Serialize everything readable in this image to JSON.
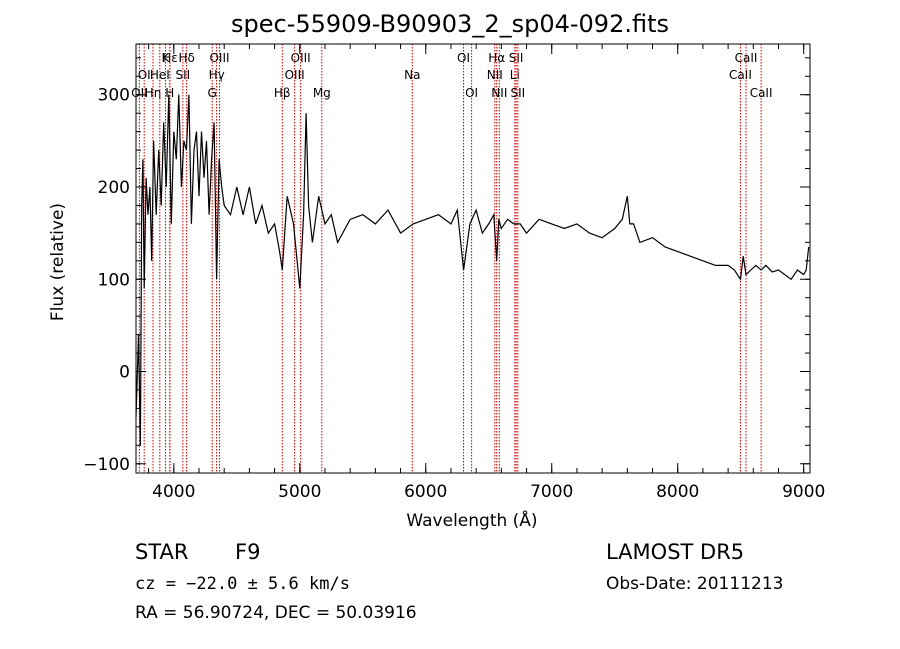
{
  "header": {
    "title": "spec-55909-B90903_2_sp04-092.fits"
  },
  "info": {
    "object_class": "STAR",
    "subclass": "F9",
    "cz": "cz = −22.0 ± 5.6 km/s",
    "radec": "RA =  56.90724, DEC =  50.03916",
    "survey": "LAMOST DR5",
    "obs_date": "Obs-Date: 20111213"
  },
  "colors": {
    "spectrum": "#000000",
    "lines": "#cc0000",
    "axes": "#000000"
  },
  "chart_data": {
    "type": "line",
    "title": "spec-55909-B90903_2_sp04-092.fits",
    "xlabel": "Wavelength (Å)",
    "ylabel": "Flux (relative)",
    "xlim": [
      3700,
      9050
    ],
    "ylim": [
      -110,
      355
    ],
    "xticks": [
      4000,
      5000,
      6000,
      7000,
      8000,
      9000
    ],
    "yticks": [
      -100,
      0,
      100,
      200,
      300
    ],
    "grid": false,
    "series": [
      {
        "x": [
          3700,
          3720,
          3735,
          3745,
          3755,
          3765,
          3780,
          3795,
          3810,
          3825,
          3840,
          3860,
          3880,
          3900,
          3920,
          3940,
          3960,
          3980,
          4000,
          4020,
          4040,
          4060,
          4080,
          4100,
          4120,
          4140,
          4160,
          4180,
          4200,
          4220,
          4240,
          4260,
          4280,
          4300,
          4320,
          4340,
          4360,
          4380,
          4400,
          4450,
          4500,
          4550,
          4600,
          4650,
          4700,
          4750,
          4800,
          4840,
          4861,
          4880,
          4900,
          4950,
          5000,
          5030,
          5050,
          5070,
          5100,
          5150,
          5200,
          5250,
          5300,
          5400,
          5500,
          5600,
          5700,
          5800,
          5900,
          6000,
          6100,
          6200,
          6250,
          6300,
          6350,
          6400,
          6450,
          6500,
          6540,
          6563,
          6580,
          6600,
          6650,
          6700,
          6750,
          6800,
          6900,
          7000,
          7100,
          7200,
          7300,
          7400,
          7500,
          7560,
          7600,
          7620,
          7650,
          7700,
          7800,
          7900,
          8000,
          8100,
          8200,
          8300,
          8400,
          8450,
          8498,
          8520,
          8542,
          8580,
          8620,
          8662,
          8700,
          8750,
          8800,
          8850,
          8900,
          8950,
          9000,
          9020,
          9040
        ],
        "y": [
          -50,
          40,
          -80,
          180,
          230,
          90,
          210,
          170,
          200,
          120,
          250,
          170,
          240,
          180,
          270,
          200,
          300,
          160,
          260,
          230,
          300,
          200,
          250,
          240,
          300,
          160,
          240,
          260,
          190,
          260,
          210,
          250,
          170,
          230,
          270,
          100,
          230,
          200,
          180,
          170,
          200,
          170,
          200,
          160,
          180,
          150,
          160,
          130,
          110,
          150,
          190,
          160,
          90,
          170,
          280,
          180,
          140,
          190,
          160,
          170,
          140,
          165,
          170,
          160,
          175,
          150,
          160,
          165,
          170,
          160,
          175,
          110,
          160,
          175,
          150,
          160,
          170,
          120,
          165,
          155,
          165,
          160,
          160,
          150,
          165,
          160,
          155,
          160,
          150,
          145,
          155,
          165,
          190,
          160,
          160,
          140,
          145,
          135,
          130,
          125,
          120,
          115,
          115,
          110,
          100,
          125,
          105,
          110,
          115,
          110,
          115,
          108,
          110,
          105,
          100,
          110,
          105,
          110,
          135
        ]
      }
    ],
    "lines": [
      {
        "label": "Hε",
        "x": 3970,
        "row": 1
      },
      {
        "label": "OI",
        "x": 3765,
        "row": 2
      },
      {
        "label": "OII",
        "x": 3727,
        "row": 3
      },
      {
        "label": "Hδ",
        "x": 4102,
        "row": 1
      },
      {
        "label": "K",
        "x": 3934,
        "row": 1
      },
      {
        "label": "Hη",
        "x": 3835,
        "row": 3
      },
      {
        "label": "HeI",
        "x": 3889,
        "row": 2
      },
      {
        "label": "H",
        "x": 3968,
        "row": 3
      },
      {
        "label": "SII",
        "x": 4072,
        "row": 2
      },
      {
        "label": "Hγ",
        "x": 4340,
        "row": 2
      },
      {
        "label": "OIII",
        "x": 4363,
        "row": 1
      },
      {
        "label": "G",
        "x": 4305,
        "row": 3
      },
      {
        "label": "Hβ",
        "x": 4861,
        "row": 3
      },
      {
        "label": "OIII",
        "x": 5007,
        "row": 1
      },
      {
        "label": "OIII",
        "x": 4959,
        "row": 2
      },
      {
        "label": "Mg",
        "x": 5175,
        "row": 3
      },
      {
        "label": "Na",
        "x": 5893,
        "row": 2
      },
      {
        "label": "OI",
        "x": 6300,
        "row": 1
      },
      {
        "label": "OI",
        "x": 6364,
        "row": 3
      },
      {
        "label": "Hα",
        "x": 6563,
        "row": 1
      },
      {
        "label": "NII",
        "x": 6548,
        "row": 2
      },
      {
        "label": "NII",
        "x": 6584,
        "row": 3
      },
      {
        "label": "SII",
        "x": 6717,
        "row": 1
      },
      {
        "label": "Li",
        "x": 6707,
        "row": 2
      },
      {
        "label": "SII",
        "x": 6731,
        "row": 3
      },
      {
        "label": "CaII",
        "x": 8498,
        "row": 2
      },
      {
        "label": "CaII",
        "x": 8542,
        "row": 1
      },
      {
        "label": "CaII",
        "x": 8662,
        "row": 3
      }
    ]
  }
}
